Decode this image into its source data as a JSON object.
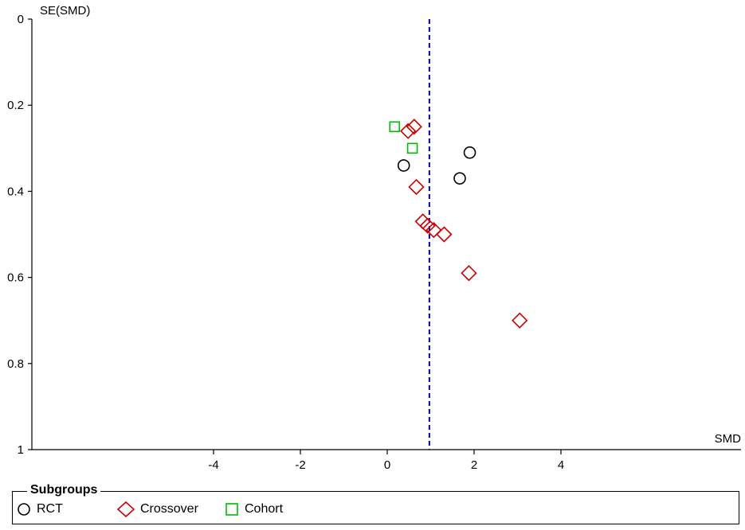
{
  "chart_data": {
    "type": "scatter",
    "title": "",
    "xlabel": "SMD",
    "ylabel": "SE(SMD)",
    "xlim": [
      -8.1,
      8.1
    ],
    "ylim": [
      1,
      0
    ],
    "y_inverted": true,
    "x_ticks": [
      -4,
      -2,
      0,
      2,
      4
    ],
    "y_ticks": [
      0,
      0.2,
      0.4,
      0.6,
      0.8,
      1
    ],
    "x_tick_labels": [
      "-4",
      "-2",
      "0",
      "2",
      "4"
    ],
    "y_tick_labels": [
      "0",
      "0.2",
      "0.4",
      "0.6",
      "0.8",
      "1"
    ],
    "reference_line_x": 0.97,
    "reference_line_style": "dashed",
    "reference_line_color": "#0000aa",
    "series": [
      {
        "name": "RCT",
        "marker": "circle",
        "color": "#000000",
        "points": [
          [
            0.38,
            0.34
          ],
          [
            1.67,
            0.37
          ],
          [
            1.9,
            0.31
          ]
        ]
      },
      {
        "name": "Crossover",
        "marker": "diamond",
        "color": "#cc0000",
        "points": [
          [
            0.62,
            0.25
          ],
          [
            0.48,
            0.26
          ],
          [
            0.67,
            0.39
          ],
          [
            0.82,
            0.47
          ],
          [
            0.93,
            0.48
          ],
          [
            1.07,
            0.49
          ],
          [
            1.31,
            0.5
          ],
          [
            1.88,
            0.59
          ],
          [
            3.05,
            0.7
          ]
        ]
      },
      {
        "name": "Cohort",
        "marker": "square",
        "color": "#00bb00",
        "points": [
          [
            0.17,
            0.25
          ],
          [
            0.58,
            0.3
          ]
        ]
      }
    ]
  },
  "legend": {
    "title": "Subgroups",
    "items": [
      {
        "label": "RCT",
        "marker": "circle",
        "color": "#000000"
      },
      {
        "label": "Crossover",
        "marker": "diamond",
        "color": "#cc0000"
      },
      {
        "label": "Cohort",
        "marker": "square",
        "color": "#00bb00"
      }
    ]
  }
}
